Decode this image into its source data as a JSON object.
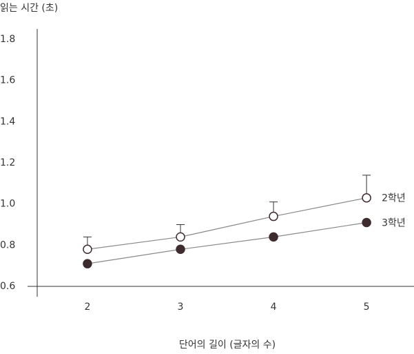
{
  "chart_data": {
    "type": "line",
    "title": "읽는 시간 (초)",
    "x_label": "단어의 길이 (글자의 수)",
    "x": [
      2,
      3,
      4,
      5
    ],
    "series": [
      {
        "name": "2학년",
        "color": "#ffffff",
        "values": [
          0.78,
          0.84,
          0.94,
          1.03
        ],
        "errors": [
          0.06,
          0.06,
          0.07,
          0.11
        ]
      },
      {
        "name": "3학년",
        "color": "#3d2b2e",
        "values": [
          0.71,
          0.78,
          0.84,
          0.91
        ]
      }
    ],
    "xlim": [
      1.46,
      5.51
    ],
    "xticks": [
      2,
      3,
      4,
      5
    ],
    "ylim": [
      0.6,
      1.85
    ],
    "yticks": [
      {
        "value": 0.6,
        "label": "0.6"
      },
      0.8,
      {
        "value": 1,
        "label": "1.0"
      },
      1.2,
      1.4,
      1.6,
      1.8
    ],
    "grid": false
  }
}
